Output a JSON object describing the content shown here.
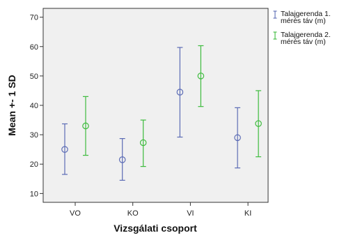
{
  "chart_data": {
    "type": "errorbar",
    "title": "",
    "xlabel": "Vizsgálati csoport",
    "ylabel": "Mean +- 1 SD",
    "categories": [
      "VO",
      "KO",
      "VI",
      "KI"
    ],
    "ylim": [
      7,
      73
    ],
    "yticks": [
      10,
      20,
      30,
      40,
      50,
      60,
      70
    ],
    "grid": false,
    "legend_position": "right",
    "series": [
      {
        "name_lines": [
          "Talajgerenda 1.",
          "mérés táv (m)"
        ],
        "color": "#5b6bb5",
        "marker": "circle-open",
        "mean": [
          25.0,
          21.5,
          44.5,
          29.0
        ],
        "low": [
          16.5,
          14.5,
          29.2,
          18.7
        ],
        "high": [
          33.7,
          28.7,
          59.7,
          39.2
        ]
      },
      {
        "name_lines": [
          "Talajgerenda 2.",
          "mérés táv (m)"
        ],
        "color": "#3dbb3d",
        "marker": "circle-open",
        "mean": [
          33.0,
          27.3,
          50.0,
          33.8
        ],
        "low": [
          23.0,
          19.2,
          39.6,
          22.5
        ],
        "high": [
          43.0,
          35.0,
          60.3,
          45.0
        ]
      }
    ]
  }
}
